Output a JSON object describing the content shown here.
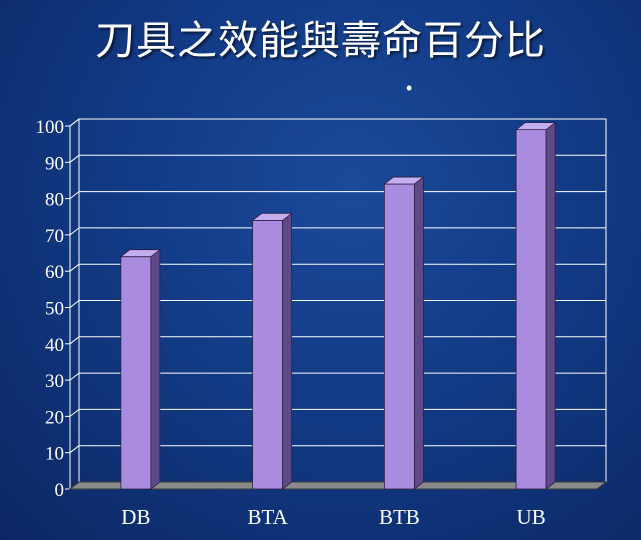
{
  "slide": {
    "title": "刀具之效能與壽命百分比",
    "bullet": "•"
  },
  "colors": {
    "background": "#123a85",
    "bar_front": "#a98be0",
    "bar_side": "#5e4a86",
    "bar_top": "#c4aef0",
    "grid": "#ffffff",
    "floor": "#8a8a8a"
  },
  "chart_data": {
    "type": "bar",
    "title": "",
    "xlabel": "",
    "ylabel": "",
    "categories": [
      "DB",
      "BTA",
      "BTB",
      "UB"
    ],
    "values": [
      64,
      74,
      84,
      99
    ],
    "ylim": [
      0,
      100
    ],
    "yticks": [
      0,
      10,
      20,
      30,
      40,
      50,
      60,
      70,
      80,
      90,
      100
    ],
    "grid": true,
    "legend": "none",
    "style": "3d-column"
  }
}
